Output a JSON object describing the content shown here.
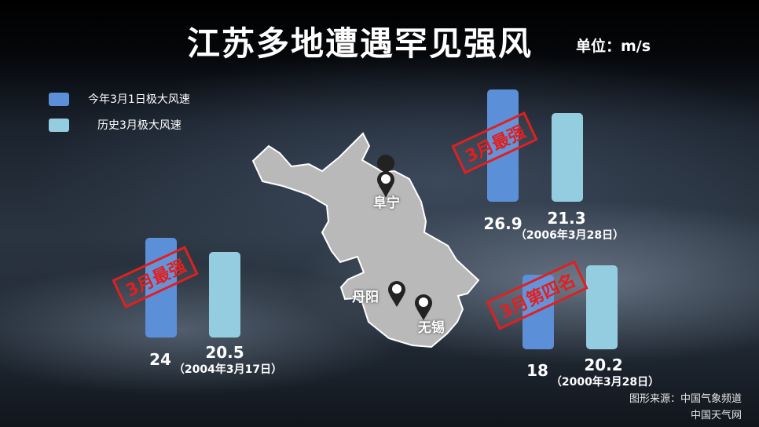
{
  "title": "江苏多地遭遇罕见强风",
  "unit": "单位：m/s",
  "legend": [
    {
      "label": "今年3月1日极大风速",
      "color": "#5b8fd8"
    },
    {
      "label": "历史3月极大风速",
      "color": "#94cde0"
    }
  ],
  "map": {
    "cities": [
      {
        "name": "阜宁"
      },
      {
        "name": "丹阳"
      },
      {
        "name": "无锡"
      }
    ]
  },
  "chart_data": [
    {
      "type": "bar",
      "series": [
        {
          "name": "今年3月1日极大风速",
          "values": [
            26.9
          ]
        },
        {
          "name": "历史3月极大风速",
          "values": [
            21.3
          ]
        }
      ],
      "values_text": [
        "26.9",
        "21.3"
      ],
      "history_date": "（2006年3月28日）",
      "stamp": "3月最强"
    },
    {
      "type": "bar",
      "series": [
        {
          "name": "今年3月1日极大风速",
          "values": [
            24
          ]
        },
        {
          "name": "历史3月极大风速",
          "values": [
            20.5
          ]
        }
      ],
      "values_text": [
        "24",
        "20.5"
      ],
      "history_date": "（2004年3月17日）",
      "stamp": "3月最强"
    },
    {
      "type": "bar",
      "series": [
        {
          "name": "今年3月1日极大风速",
          "values": [
            18
          ]
        },
        {
          "name": "历史3月极大风速",
          "values": [
            20.2
          ]
        }
      ],
      "values_text": [
        "18",
        "20.2"
      ],
      "history_date": "（2000年3月28日）",
      "stamp": "3月第四名"
    }
  ],
  "source": {
    "line1": "图形来源：中国气象频道",
    "line2": "中国天气网"
  }
}
